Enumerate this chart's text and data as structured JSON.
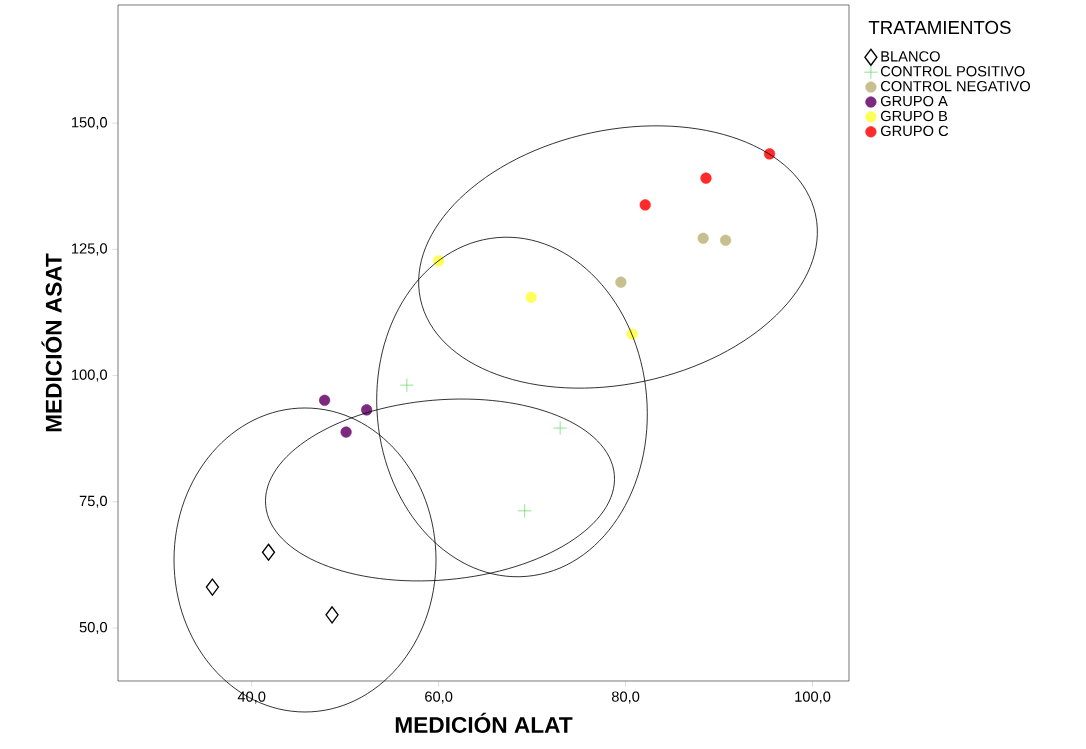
{
  "chart_data": {
    "type": "scatter",
    "xlabel": "MEDICIÓN ALAT",
    "ylabel": "MEDICIÓN ASAT",
    "legend_title": "TRATAMIENTOS",
    "legend": "top right",
    "xlim": [
      25.7,
      103.9
    ],
    "ylim": [
      39.5,
      173.4
    ],
    "xticks": [
      {
        "value": 40,
        "label": "40,0"
      },
      {
        "value": 60,
        "label": "60,0"
      },
      {
        "value": 80,
        "label": "80,0"
      },
      {
        "value": 100,
        "label": "100,0"
      }
    ],
    "yticks": [
      {
        "value": 50,
        "label": "50,0"
      },
      {
        "value": 75,
        "label": "75,0"
      },
      {
        "value": 100,
        "label": "100,0"
      },
      {
        "value": 125,
        "label": "125,0"
      },
      {
        "value": 150,
        "label": "150,0"
      }
    ],
    "series": [
      {
        "name": "BLANCO",
        "color": "#000000",
        "marker": "diamond",
        "x": [
          35.8,
          41.8,
          48.6
        ],
        "values": [
          58.1,
          65.0,
          52.6
        ]
      },
      {
        "name": "CONTROL POSITIVO",
        "color": "#33cc33",
        "marker": "cross",
        "x": [
          56.6,
          73.0,
          69.2
        ],
        "values": [
          98.1,
          89.6,
          73.2
        ]
      },
      {
        "name": "CONTROL NEGATIVO",
        "color": "#c8bf8e",
        "marker": "circle",
        "x": [
          79.5,
          88.3,
          90.7
        ],
        "values": [
          118.5,
          127.2,
          126.8
        ]
      },
      {
        "name": "GRUPO A",
        "color": "#7b2a80",
        "marker": "circle",
        "x": [
          47.8,
          52.3,
          50.1
        ],
        "values": [
          95.1,
          93.2,
          88.8
        ]
      },
      {
        "name": "GRUPO B",
        "color": "#ffff5a",
        "marker": "circle",
        "x": [
          60.0,
          69.9,
          80.7
        ],
        "values": [
          122.7,
          115.5,
          108.2
        ]
      },
      {
        "name": "GRUPO C",
        "color": "#ff2a2a",
        "marker": "circle",
        "x": [
          82.1,
          88.6,
          95.4
        ],
        "values": [
          133.8,
          139.1,
          143.9
        ]
      }
    ]
  }
}
